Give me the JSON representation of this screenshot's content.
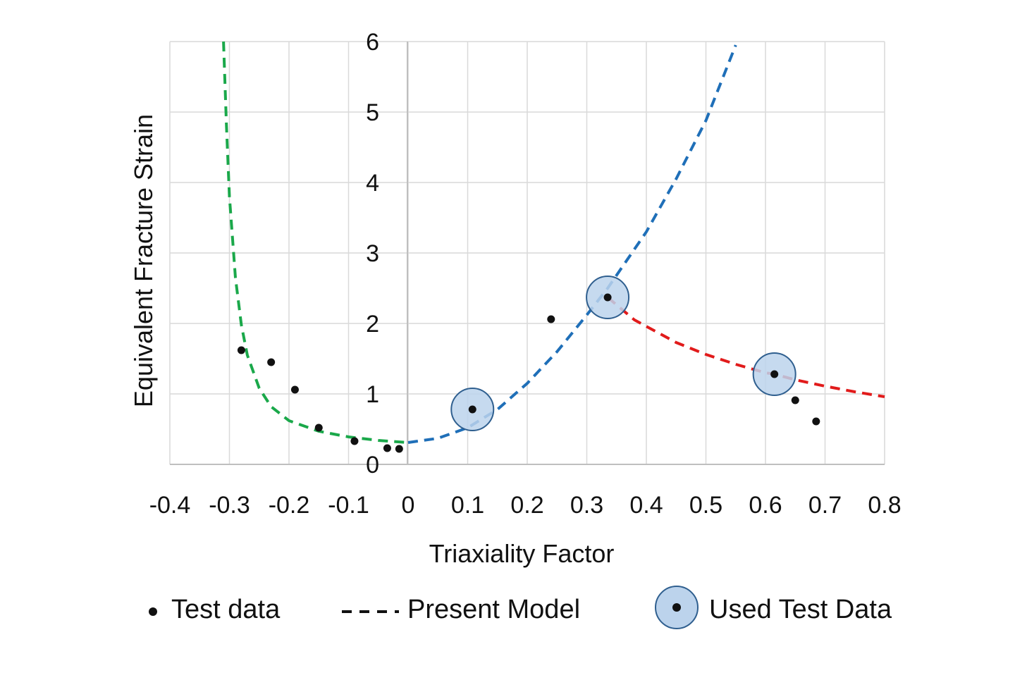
{
  "chart_data": {
    "type": "scatter",
    "xlabel": "Triaxiality Factor",
    "ylabel": "Equivalent Fracture Strain",
    "xlim": [
      -0.4,
      0.8
    ],
    "ylim": [
      0,
      6
    ],
    "x_ticks": [
      "-0.4",
      "-0.3",
      "-0.2",
      "-0.1",
      "0",
      "0.1",
      "0.2",
      "0.3",
      "0.4",
      "0.5",
      "0.6",
      "0.7",
      "0.8"
    ],
    "y_ticks": [
      "0",
      "1",
      "2",
      "3",
      "4",
      "5",
      "6"
    ],
    "grid": true,
    "legend_position": "bottom",
    "legend": {
      "test_data": "Test data",
      "present_model": "Present Model",
      "used_test_data": "Used Test Data"
    },
    "colors": {
      "test_points": "#111111",
      "used_circle_fill": "#bcd3ec",
      "used_circle_stroke": "#2f5f8f",
      "compression_model": "#1aa84a",
      "shear_model": "#1f6fb8",
      "tension_model": "#e11b1b",
      "grid": "#d9d9d9"
    },
    "test_data": [
      {
        "x": -0.28,
        "y": 1.62
      },
      {
        "x": -0.23,
        "y": 1.45
      },
      {
        "x": -0.19,
        "y": 1.06
      },
      {
        "x": -0.15,
        "y": 0.52
      },
      {
        "x": -0.09,
        "y": 0.33
      },
      {
        "x": -0.035,
        "y": 0.23
      },
      {
        "x": -0.015,
        "y": 0.22
      },
      {
        "x": 0.24,
        "y": 2.06
      },
      {
        "x": 0.65,
        "y": 0.91
      },
      {
        "x": 0.685,
        "y": 0.61
      }
    ],
    "used_test_data": [
      {
        "x": 0.108,
        "y": 0.78
      },
      {
        "x": 0.335,
        "y": 2.37
      },
      {
        "x": 0.615,
        "y": 1.28
      }
    ],
    "model_curves": [
      {
        "segment": "compression",
        "color": "#1aa84a",
        "points": [
          {
            "x": -0.31,
            "y": 6.0
          },
          {
            "x": -0.305,
            "y": 4.8
          },
          {
            "x": -0.3,
            "y": 3.8
          },
          {
            "x": -0.29,
            "y": 2.65
          },
          {
            "x": -0.28,
            "y": 1.98
          },
          {
            "x": -0.27,
            "y": 1.55
          },
          {
            "x": -0.25,
            "y": 1.08
          },
          {
            "x": -0.23,
            "y": 0.82
          },
          {
            "x": -0.2,
            "y": 0.62
          },
          {
            "x": -0.15,
            "y": 0.47
          },
          {
            "x": -0.1,
            "y": 0.39
          },
          {
            "x": -0.05,
            "y": 0.34
          },
          {
            "x": 0.0,
            "y": 0.31
          }
        ]
      },
      {
        "segment": "shear",
        "color": "#1f6fb8",
        "points": [
          {
            "x": 0.0,
            "y": 0.31
          },
          {
            "x": 0.05,
            "y": 0.37
          },
          {
            "x": 0.1,
            "y": 0.52
          },
          {
            "x": 0.15,
            "y": 0.78
          },
          {
            "x": 0.2,
            "y": 1.15
          },
          {
            "x": 0.25,
            "y": 1.6
          },
          {
            "x": 0.3,
            "y": 2.12
          },
          {
            "x": 0.335,
            "y": 2.5
          },
          {
            "x": 0.4,
            "y": 3.3
          },
          {
            "x": 0.45,
            "y": 4.05
          },
          {
            "x": 0.5,
            "y": 4.88
          },
          {
            "x": 0.55,
            "y": 5.95
          }
        ]
      },
      {
        "segment": "tension",
        "color": "#e11b1b",
        "points": [
          {
            "x": 0.335,
            "y": 2.37
          },
          {
            "x": 0.38,
            "y": 2.05
          },
          {
            "x": 0.45,
            "y": 1.73
          },
          {
            "x": 0.5,
            "y": 1.56
          },
          {
            "x": 0.55,
            "y": 1.42
          },
          {
            "x": 0.6,
            "y": 1.3
          },
          {
            "x": 0.615,
            "y": 1.28
          },
          {
            "x": 0.65,
            "y": 1.2
          },
          {
            "x": 0.7,
            "y": 1.11
          },
          {
            "x": 0.75,
            "y": 1.03
          },
          {
            "x": 0.8,
            "y": 0.96
          }
        ]
      }
    ]
  }
}
